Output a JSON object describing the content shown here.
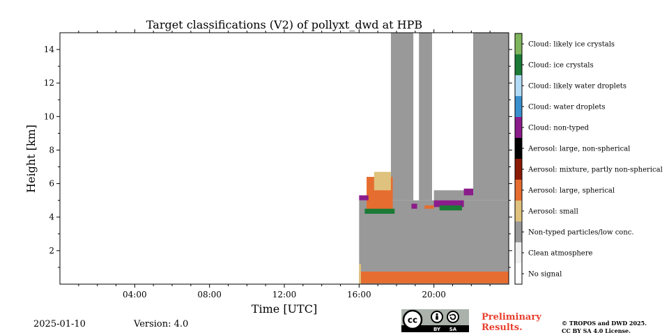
{
  "footer": {
    "date": "2025-01-10",
    "version": "Version: 4.0",
    "preliminary_line1": "Preliminary",
    "preliminary_line2": "Results.",
    "copyright_line1": "© TROPOS and DWD 2025.",
    "copyright_line2": "CC BY SA 4.0 License."
  },
  "license_badge": {
    "cc": "cc",
    "by": "BY",
    "sa": "SA",
    "icon": "cc-by-sa-icon"
  },
  "chart_data": {
    "type": "heatmap",
    "title": "Target classifications (V2) of pollyxt_dwd at HPB",
    "xlabel": "Time [UTC]",
    "ylabel": "Height [km]",
    "xlim": [
      0,
      24
    ],
    "ylim": [
      0,
      15
    ],
    "xticks": [
      {
        "value": 4,
        "label": "04:00"
      },
      {
        "value": 8,
        "label": "08:00"
      },
      {
        "value": 12,
        "label": "12:00"
      },
      {
        "value": 16,
        "label": "16:00"
      },
      {
        "value": 20,
        "label": "20:00"
      }
    ],
    "yticks": [
      {
        "value": 2,
        "label": "2"
      },
      {
        "value": 4,
        "label": "4"
      },
      {
        "value": 6,
        "label": "6"
      },
      {
        "value": 8,
        "label": "8"
      },
      {
        "value": 10,
        "label": "10"
      },
      {
        "value": 12,
        "label": "12"
      },
      {
        "value": 14,
        "label": "14"
      }
    ],
    "classes": [
      {
        "label": "No signal",
        "color": "#ffffff"
      },
      {
        "label": "Clean atmosphere",
        "color": "#f0f0f0"
      },
      {
        "label": "Non-typed particles/low conc.",
        "color": "#999999"
      },
      {
        "label": "Aerosol: small",
        "color": "#dfc27d"
      },
      {
        "label": "Aerosol: large, spherical",
        "color": "#e66d30"
      },
      {
        "label": "Aerosol: mixture, partly non-spherical",
        "color": "#8b1a04"
      },
      {
        "label": "Aerosol: large, non-spherical",
        "color": "#000000"
      },
      {
        "label": "Cloud: non-typed",
        "color": "#8b1c8b"
      },
      {
        "label": "Cloud: water droplets",
        "color": "#3a8fce"
      },
      {
        "label": "Cloud: likely water droplets",
        "color": "#b2dbf5"
      },
      {
        "label": "Cloud: ice crystals",
        "color": "#1b7a36"
      },
      {
        "label": "Cloud: likely ice crystals",
        "color": "#7fb55c"
      }
    ],
    "regions": [
      {
        "class": "Non-typed particles/low conc.",
        "x": [
          16.0,
          24.0
        ],
        "y": [
          0.0,
          5.0
        ]
      },
      {
        "class": "Non-typed particles/low conc.",
        "x": [
          17.7,
          18.9
        ],
        "y": [
          5.0,
          15.0
        ]
      },
      {
        "class": "Non-typed particles/low conc.",
        "x": [
          19.2,
          19.9
        ],
        "y": [
          5.0,
          15.0
        ]
      },
      {
        "class": "Non-typed particles/low conc.",
        "x": [
          22.1,
          24.0
        ],
        "y": [
          5.0,
          15.0
        ]
      },
      {
        "class": "Non-typed particles/low conc.",
        "x": [
          20.0,
          22.1
        ],
        "y": [
          5.0,
          5.6
        ]
      },
      {
        "class": "Aerosol: large, spherical",
        "x": [
          16.0,
          24.0
        ],
        "y": [
          0.05,
          0.75
        ]
      },
      {
        "class": "Aerosol: small",
        "x": [
          16.0,
          16.1
        ],
        "y": [
          0.0,
          1.2
        ]
      },
      {
        "class": "Aerosol: large, spherical",
        "x": [
          16.4,
          17.8
        ],
        "y": [
          4.3,
          6.4
        ]
      },
      {
        "class": "Aerosol: small",
        "x": [
          16.8,
          17.7
        ],
        "y": [
          5.6,
          6.7
        ]
      },
      {
        "class": "Cloud: ice crystals",
        "x": [
          16.3,
          17.9
        ],
        "y": [
          4.2,
          4.5
        ]
      },
      {
        "class": "Cloud: non-typed",
        "x": [
          16.0,
          16.5
        ],
        "y": [
          5.0,
          5.3
        ]
      },
      {
        "class": "Cloud: non-typed",
        "x": [
          18.8,
          19.1
        ],
        "y": [
          4.5,
          4.8
        ]
      },
      {
        "class": "Cloud: non-typed",
        "x": [
          20.0,
          21.6
        ],
        "y": [
          4.6,
          5.0
        ]
      },
      {
        "class": "Cloud: ice crystals",
        "x": [
          20.3,
          21.5
        ],
        "y": [
          4.4,
          4.7
        ]
      },
      {
        "class": "Cloud: non-typed",
        "x": [
          21.6,
          22.1
        ],
        "y": [
          5.3,
          5.7
        ]
      },
      {
        "class": "Aerosol: large, spherical",
        "x": [
          19.5,
          20.0
        ],
        "y": [
          4.5,
          4.7
        ]
      }
    ]
  }
}
